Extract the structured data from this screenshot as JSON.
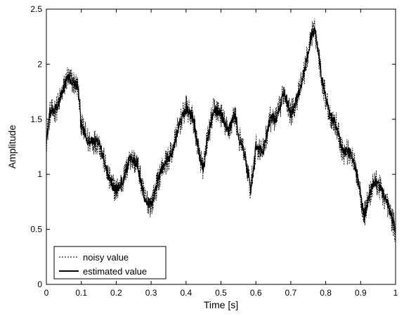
{
  "chart_data": {
    "type": "line",
    "xlabel": "Time [s]",
    "ylabel": "Amplitude",
    "xlim": [
      0,
      1
    ],
    "ylim": [
      0,
      2.5
    ],
    "xticks": [
      0,
      0.1,
      0.2,
      0.3,
      0.4,
      0.5,
      0.6,
      0.7,
      0.8,
      0.9,
      1
    ],
    "xtick_labels": [
      "0",
      "0.1",
      "0.2",
      "0.3",
      "0.4",
      "0.5",
      "0.6",
      "0.7",
      "0.8",
      "0.9",
      "1"
    ],
    "yticks": [
      0,
      0.5,
      1,
      1.5,
      2,
      2.5
    ],
    "ytick_labels": [
      "0",
      "0.5",
      "1",
      "1.5",
      "2",
      "2.5"
    ],
    "grid": false,
    "legend_position": "bottom-left",
    "series": [
      {
        "name": "noisy value",
        "style": "dashed",
        "color": "#000000",
        "noise_amplitude": 0.12
      },
      {
        "name": "estimated value",
        "style": "solid",
        "color": "#000000",
        "noise_amplitude": 0.05
      }
    ],
    "trend": {
      "x": [
        0,
        0.01,
        0.03,
        0.06,
        0.09,
        0.1,
        0.12,
        0.15,
        0.18,
        0.2,
        0.22,
        0.24,
        0.26,
        0.28,
        0.3,
        0.33,
        0.36,
        0.38,
        0.4,
        0.42,
        0.44,
        0.45,
        0.46,
        0.48,
        0.5,
        0.52,
        0.54,
        0.55,
        0.57,
        0.585,
        0.6,
        0.62,
        0.64,
        0.66,
        0.68,
        0.7,
        0.72,
        0.74,
        0.76,
        0.77,
        0.79,
        0.81,
        0.83,
        0.85,
        0.87,
        0.89,
        0.91,
        0.92,
        0.94,
        0.96,
        0.98,
        1.0
      ],
      "y": [
        1.3,
        1.55,
        1.6,
        1.88,
        1.8,
        1.45,
        1.3,
        1.3,
        0.95,
        0.85,
        0.95,
        1.15,
        1.1,
        0.8,
        0.72,
        1.05,
        1.2,
        1.45,
        1.6,
        1.5,
        1.15,
        1.05,
        1.3,
        1.6,
        1.55,
        1.38,
        1.55,
        1.35,
        1.15,
        0.85,
        1.25,
        1.2,
        1.5,
        1.5,
        1.75,
        1.55,
        1.7,
        1.95,
        2.28,
        2.3,
        1.85,
        1.55,
        1.45,
        1.2,
        1.2,
        1.0,
        0.62,
        0.75,
        0.95,
        0.85,
        0.7,
        0.48
      ]
    }
  }
}
